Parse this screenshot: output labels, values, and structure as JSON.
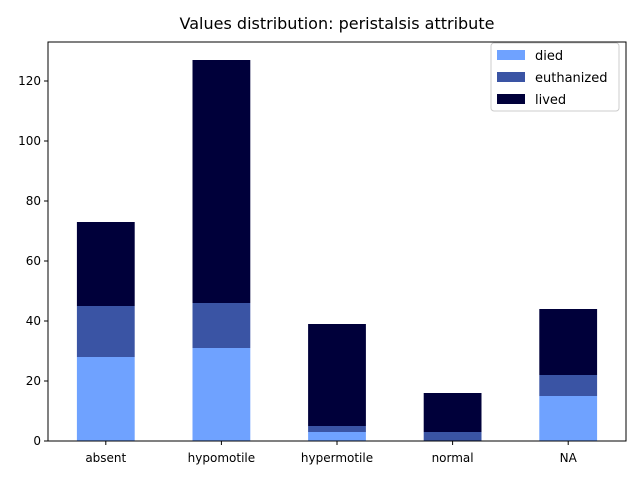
{
  "chart_data": {
    "type": "bar",
    "stacked": true,
    "title": "Values distribution: peristalsis attribute",
    "xlabel": "",
    "ylabel": "",
    "categories": [
      "absent",
      "hypomotile",
      "hypermotile",
      "normal",
      "NA"
    ],
    "series": [
      {
        "name": "died",
        "color": "#6fa2ff",
        "values": [
          28,
          31,
          3,
          0,
          15
        ]
      },
      {
        "name": "euthanized",
        "color": "#3a54a4",
        "values": [
          17,
          15,
          2,
          3,
          7
        ]
      },
      {
        "name": "lived",
        "color": "#00003a",
        "values": [
          28,
          81,
          34,
          13,
          22
        ]
      }
    ],
    "ylim": [
      0,
      133
    ],
    "yticks": [
      0,
      20,
      40,
      60,
      80,
      100,
      120
    ],
    "grid": false,
    "legend_position": "top-right"
  }
}
